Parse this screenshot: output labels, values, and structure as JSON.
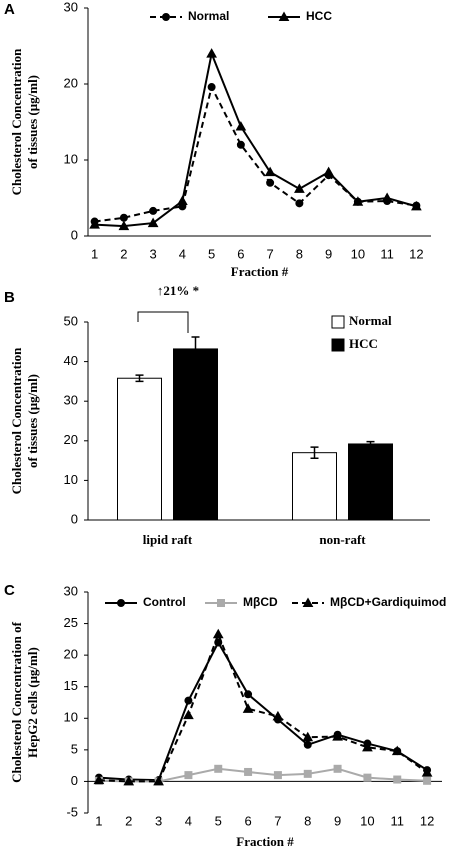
{
  "chart_data": [
    {
      "type": "line",
      "panel": "A",
      "ylabel": [
        "Cholesterol Concentration",
        "of tissues (μg/ml)"
      ],
      "xlabel": "Fraction #",
      "categories": [
        "1",
        "2",
        "3",
        "4",
        "5",
        "6",
        "7",
        "8",
        "9",
        "10",
        "11",
        "12"
      ],
      "ylim": [
        0,
        30
      ],
      "yticks": [
        0,
        10,
        20,
        30
      ],
      "series": [
        {
          "name": "Normal",
          "color": "#000000",
          "line_style": "dashed",
          "marker": "circle",
          "values": [
            1.9,
            2.4,
            3.3,
            3.9,
            19.6,
            12.0,
            7.0,
            4.3,
            8.0,
            4.5,
            4.6,
            4.0
          ]
        },
        {
          "name": "HCC",
          "color": "#000000",
          "line_style": "solid",
          "marker": "triangle",
          "values": [
            1.5,
            1.3,
            1.7,
            4.6,
            24.0,
            14.4,
            8.4,
            6.2,
            8.4,
            4.5,
            5.0,
            3.9
          ]
        }
      ]
    },
    {
      "type": "bar",
      "panel": "B",
      "ylabel": [
        "Cholesterol Concentration",
        "of tissues (μg/ml)"
      ],
      "annotation": "↑21%  *",
      "categories": [
        "lipid raft",
        "non-raft"
      ],
      "ylim": [
        0,
        50
      ],
      "yticks": [
        0,
        10,
        20,
        30,
        40,
        50
      ],
      "series": [
        {
          "name": "Normal",
          "color": "#ffffff",
          "values": [
            35.8,
            17.0
          ],
          "errors": [
            0.8,
            1.4
          ]
        },
        {
          "name": "HCC",
          "color": "#000000",
          "values": [
            43.2,
            19.2
          ],
          "errors": [
            3.0,
            0.6
          ]
        }
      ]
    },
    {
      "type": "line",
      "panel": "C",
      "ylabel": [
        "Cholesterol Concentration of",
        "HepG2 cells (μg/ml)"
      ],
      "xlabel": "Fraction #",
      "categories": [
        "1",
        "2",
        "3",
        "4",
        "5",
        "6",
        "7",
        "8",
        "9",
        "10",
        "11",
        "12"
      ],
      "ylim": [
        -5,
        30
      ],
      "yticks": [
        -5,
        0,
        5,
        10,
        15,
        20,
        25,
        30
      ],
      "series": [
        {
          "name": "Control",
          "color": "#000000",
          "line_style": "solid",
          "marker": "circle",
          "values": [
            0.6,
            0.3,
            0.2,
            12.8,
            22.0,
            13.8,
            9.8,
            5.8,
            7.4,
            6.0,
            4.8,
            1.8
          ]
        },
        {
          "name": "MβCD",
          "color": "#aaaaaa",
          "line_style": "solid",
          "marker": "square",
          "values": [
            0.1,
            0.0,
            0.0,
            1.0,
            2.0,
            1.5,
            1.0,
            1.2,
            2.0,
            0.6,
            0.3,
            0.1
          ]
        },
        {
          "name": "MβCD+Gardiquimod",
          "color": "#000000",
          "line_style": "dashed",
          "marker": "triangle",
          "values": [
            0.2,
            0.0,
            0.0,
            10.5,
            23.3,
            11.5,
            10.3,
            7.0,
            7.1,
            5.4,
            4.8,
            1.4
          ]
        }
      ]
    }
  ]
}
